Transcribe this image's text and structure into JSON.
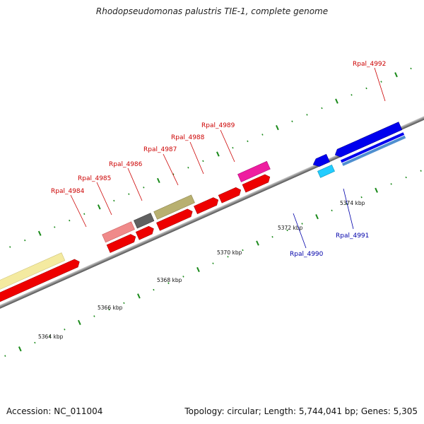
{
  "title": "Rhodopseudomonas palustris TIE-1, complete genome",
  "footer": {
    "accession": "Accession: NC_011004",
    "summary": "Topology: circular; Length: 5,744,041 bp; Genes: 5,305"
  },
  "colors": {
    "forward_gene": "#ff0000",
    "reverse_gene": "#0000ff",
    "forward_label": "#cc0000",
    "reverse_label": "#0000aa",
    "backbone": "#8a8a8a",
    "tick": "#1a8a1a"
  },
  "scale_labels": [
    "5364 kbp",
    "5366 kbp",
    "5368 kbp",
    "5370 kbp",
    "5372 kbp",
    "5374 kbp"
  ],
  "gene_labels": [
    {
      "name": "Rpal_4984",
      "strand": "forward"
    },
    {
      "name": "Rpal_4985",
      "strand": "forward"
    },
    {
      "name": "Rpal_4986",
      "strand": "forward"
    },
    {
      "name": "Rpal_4987",
      "strand": "forward"
    },
    {
      "name": "Rpal_4988",
      "strand": "forward"
    },
    {
      "name": "Rpal_4989",
      "strand": "forward"
    },
    {
      "name": "Rpal_4990",
      "strand": "reverse"
    },
    {
      "name": "Rpal_4991",
      "strand": "reverse"
    },
    {
      "name": "Rpal_4992",
      "strand": "forward"
    }
  ]
}
